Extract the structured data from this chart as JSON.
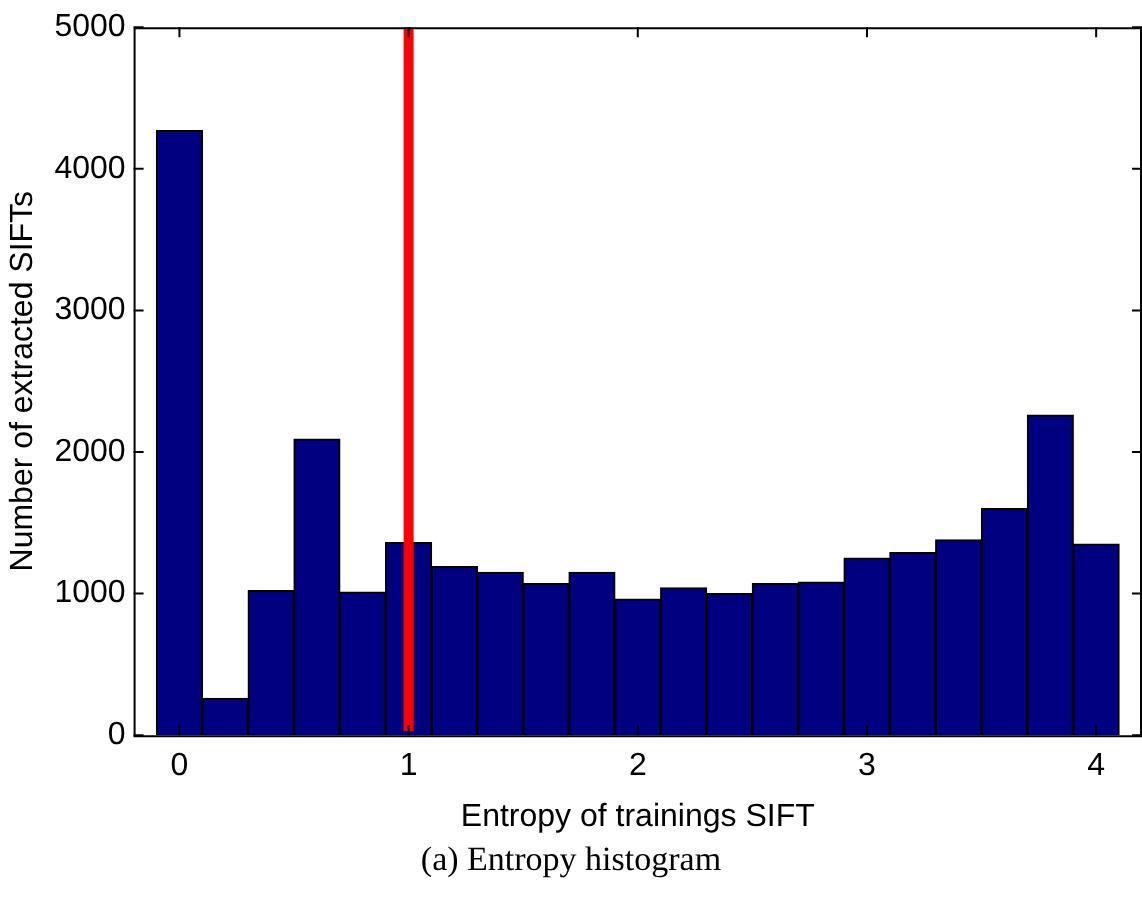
{
  "chart_data": {
    "type": "histogram",
    "xlabel": "Entropy of trainings SIFT",
    "ylabel": "Number of extracted SIFTs",
    "bins": [
      -0.1,
      0.1,
      0.3,
      0.5,
      0.7,
      0.9,
      1.1,
      1.3,
      1.5,
      1.7,
      1.9,
      2.1,
      2.3,
      2.5,
      2.7,
      2.9,
      3.1,
      3.3,
      3.5,
      3.7,
      3.9,
      4.1
    ],
    "values": [
      4270,
      260,
      1020,
      2090,
      1010,
      1360,
      1190,
      1150,
      1070,
      1150,
      960,
      1040,
      1000,
      1070,
      1080,
      1250,
      1290,
      1380,
      1600,
      2260,
      1350
    ],
    "color": "#000080",
    "xlim": [
      -0.2,
      4.2
    ],
    "xticks": [
      0,
      1,
      2,
      3,
      4
    ],
    "ylim": [
      0,
      5000
    ],
    "yticks": [
      0,
      1000,
      2000,
      3000,
      4000,
      5000
    ],
    "ref_lines": [
      {
        "axis": "x",
        "value": 1,
        "color": "#ff0000"
      }
    ],
    "annotations": [
      "(a) Entropy histogram"
    ],
    "grid": false,
    "legend": false
  }
}
